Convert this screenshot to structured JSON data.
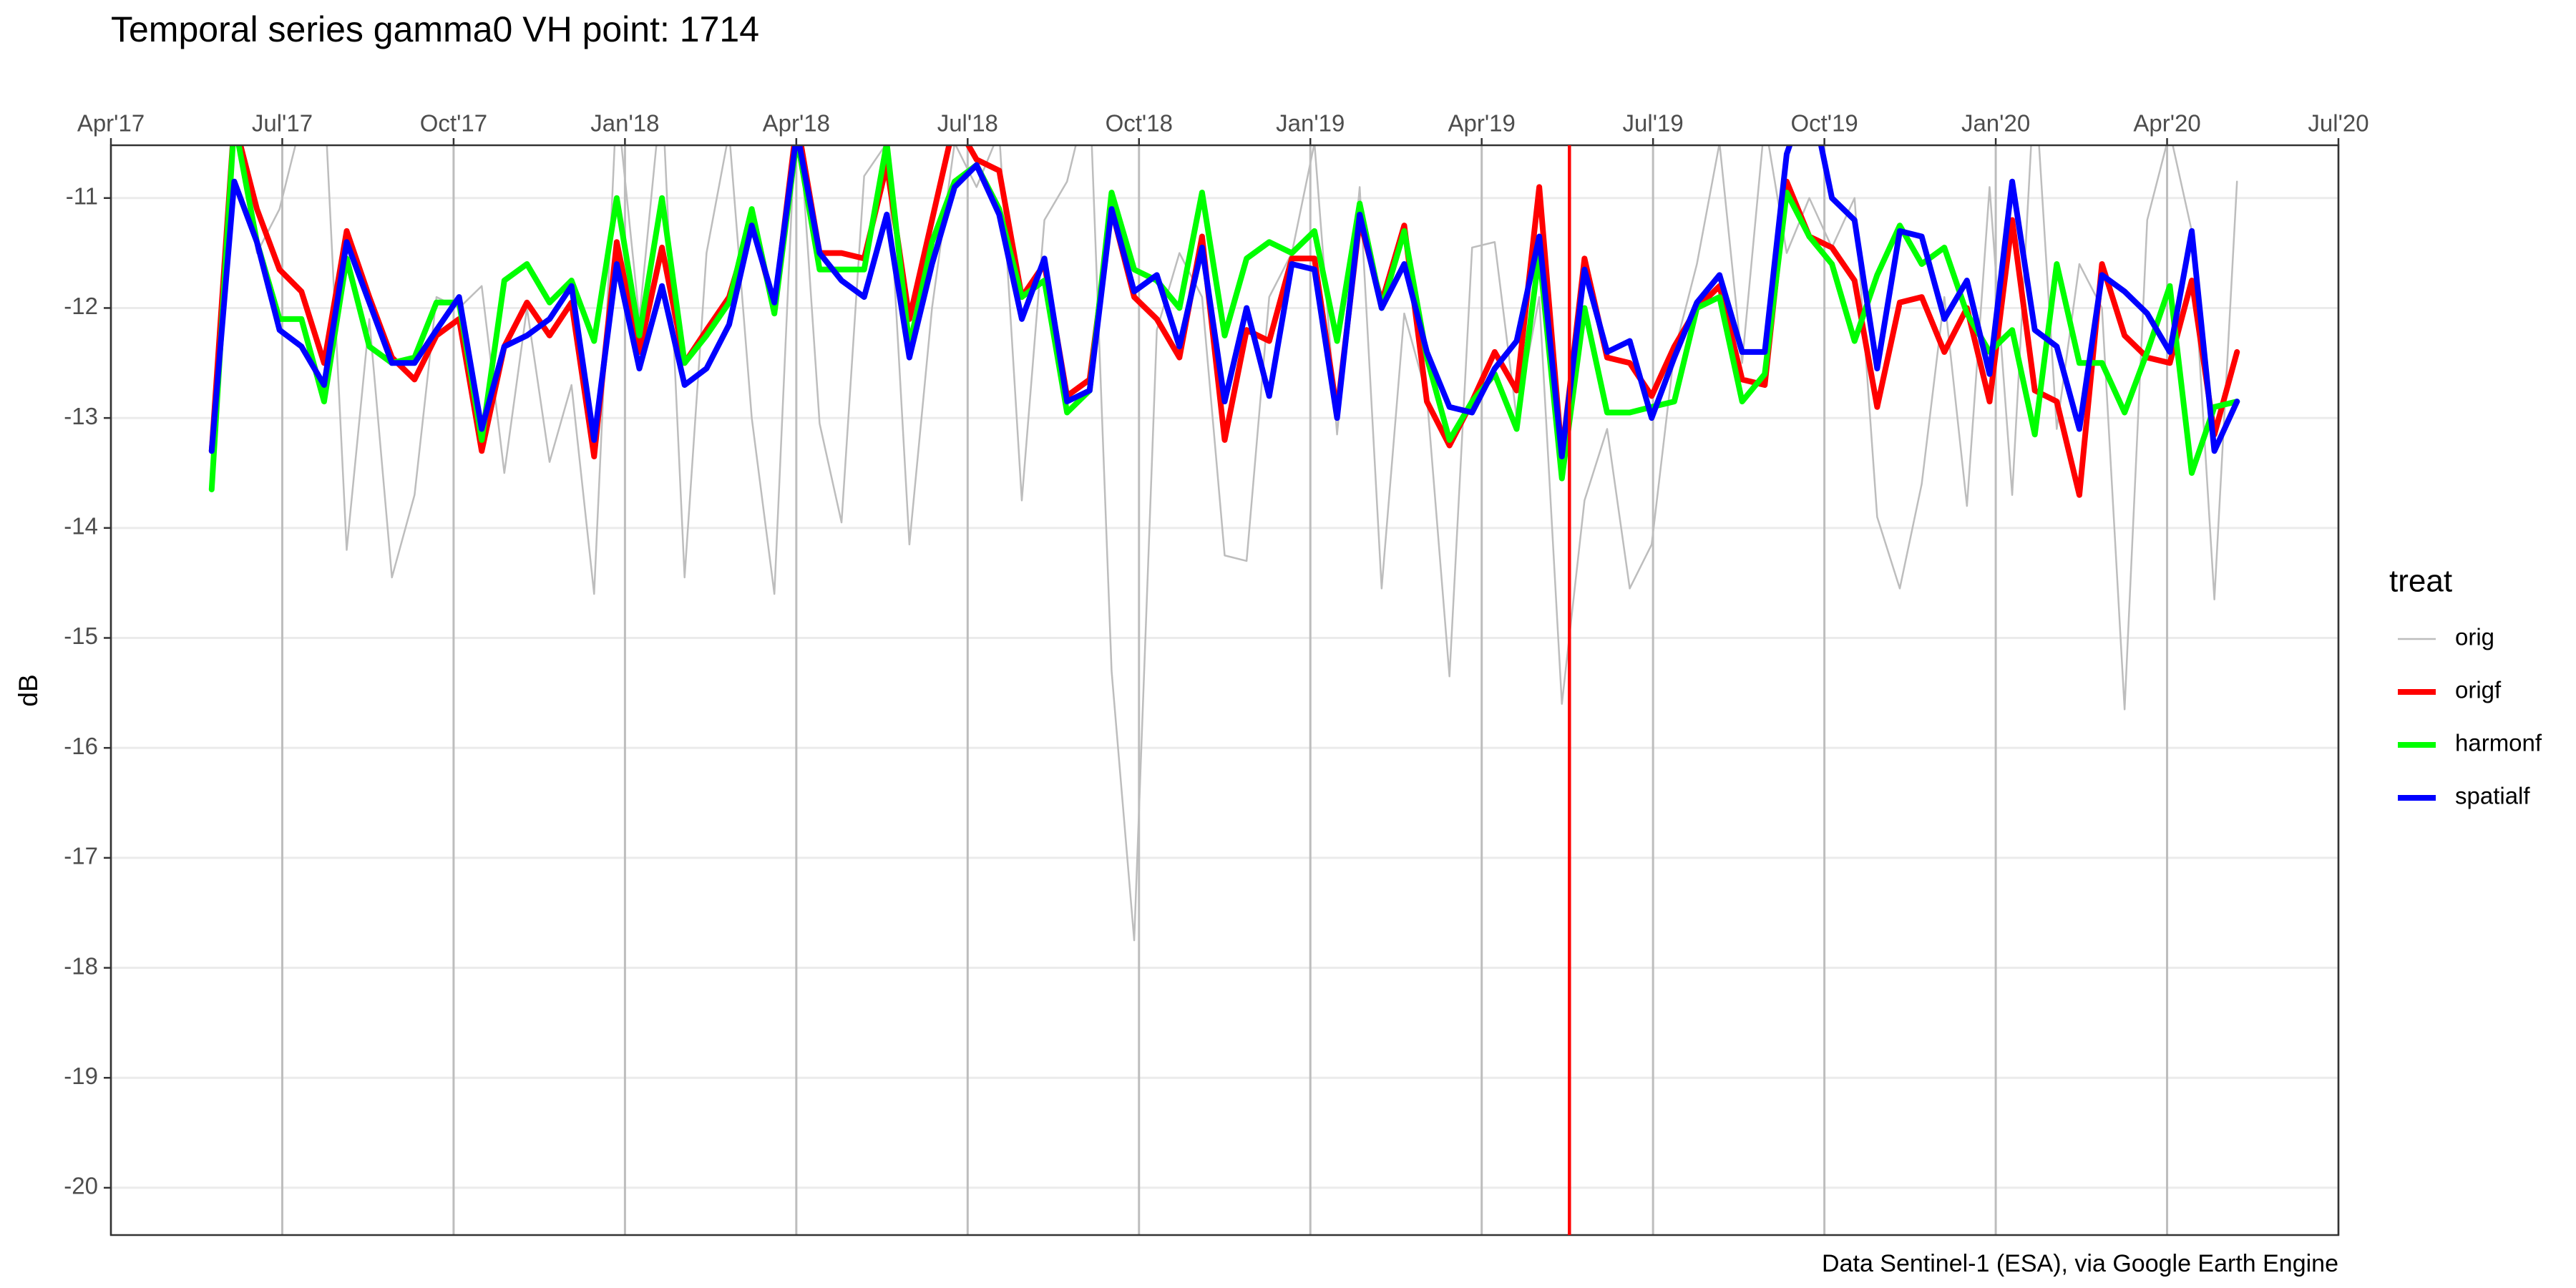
{
  "chart_data": {
    "type": "line",
    "title": "Temporal series gamma0 VH point: 1714",
    "ylabel": "dB",
    "caption": "Data Sentinel-1 (ESA), via Google Earth Engine",
    "legend_title": "treat",
    "legend": "right",
    "grid": true,
    "xlim": [
      2017.25,
      2020.5
    ],
    "xticks": [
      {
        "value": 2017.25,
        "label": "Apr'17"
      },
      {
        "value": 2017.5,
        "label": "Jul'17"
      },
      {
        "value": 2017.75,
        "label": "Oct'17"
      },
      {
        "value": 2018.0,
        "label": "Jan'18"
      },
      {
        "value": 2018.25,
        "label": "Apr'18"
      },
      {
        "value": 2018.5,
        "label": "Jul'18"
      },
      {
        "value": 2018.75,
        "label": "Oct'18"
      },
      {
        "value": 2019.0,
        "label": "Jan'19"
      },
      {
        "value": 2019.25,
        "label": "Apr'19"
      },
      {
        "value": 2019.5,
        "label": "Jul'19"
      },
      {
        "value": 2019.75,
        "label": "Oct'19"
      },
      {
        "value": 2020.0,
        "label": "Jan'20"
      },
      {
        "value": 2020.25,
        "label": "Apr'20"
      },
      {
        "value": 2020.5,
        "label": "Jul'20"
      }
    ],
    "ylim": [
      -20.43,
      -10.52
    ],
    "yticks": [
      -11,
      -12,
      -13,
      -14,
      -15,
      -16,
      -17,
      -18,
      -19,
      -20
    ],
    "vline": 2019.378,
    "vline_color": "#ff0000",
    "x": [
      2017.397,
      2017.43,
      2017.463,
      2017.496,
      2017.528,
      2017.561,
      2017.594,
      2017.627,
      2017.66,
      2017.693,
      2017.725,
      2017.758,
      2017.791,
      2017.824,
      2017.857,
      2017.89,
      2017.922,
      2017.955,
      2017.988,
      2018.021,
      2018.054,
      2018.087,
      2018.119,
      2018.152,
      2018.185,
      2018.218,
      2018.251,
      2018.284,
      2018.316,
      2018.349,
      2018.382,
      2018.415,
      2018.448,
      2018.481,
      2018.513,
      2018.546,
      2018.579,
      2018.612,
      2018.645,
      2018.678,
      2018.71,
      2018.743,
      2018.776,
      2018.809,
      2018.842,
      2018.875,
      2018.907,
      2018.94,
      2018.973,
      2019.006,
      2019.039,
      2019.072,
      2019.104,
      2019.137,
      2019.17,
      2019.203,
      2019.236,
      2019.269,
      2019.301,
      2019.334,
      2019.367,
      2019.4,
      2019.433,
      2019.466,
      2019.498,
      2019.531,
      2019.564,
      2019.597,
      2019.63,
      2019.663,
      2019.695,
      2019.728,
      2019.761,
      2019.794,
      2019.827,
      2019.86,
      2019.892,
      2019.925,
      2019.958,
      2019.991,
      2020.024,
      2020.057,
      2020.089,
      2020.122,
      2020.155,
      2020.188,
      2020.221,
      2020.254,
      2020.286,
      2020.319,
      2020.352
    ],
    "series": [
      {
        "name": "orig",
        "color": "#bdbdbd",
        "linewidth": 2.5,
        "values": [
          -13.4,
          -10.2,
          -11.5,
          -11.1,
          -10.3,
          -10.0,
          -14.2,
          -12.1,
          -14.45,
          -13.7,
          -11.9,
          -12.0,
          -11.8,
          -13.5,
          -12.0,
          -13.4,
          -12.7,
          -14.6,
          -10.1,
          -12.1,
          -10.0,
          -14.45,
          -11.5,
          -10.4,
          -13.0,
          -14.6,
          -10.0,
          -13.05,
          -13.95,
          -10.8,
          -10.5,
          -14.15,
          -12.0,
          -10.5,
          -10.9,
          -10.4,
          -13.75,
          -11.2,
          -10.85,
          -10.0,
          -15.3,
          -17.75,
          -12.2,
          -11.5,
          -11.9,
          -14.25,
          -14.3,
          -11.9,
          -11.5,
          -10.5,
          -13.15,
          -10.9,
          -14.55,
          -12.05,
          -12.8,
          -15.35,
          -11.45,
          -11.4,
          -13.0,
          -11.9,
          -15.6,
          -13.75,
          -13.1,
          -14.55,
          -14.15,
          -12.4,
          -11.6,
          -10.5,
          -12.5,
          -10.3,
          -11.5,
          -11.0,
          -11.45,
          -11.0,
          -13.9,
          -14.55,
          -13.6,
          -11.9,
          -13.8,
          -10.9,
          -13.7,
          -9.9,
          -13.1,
          -11.6,
          -12.0,
          -15.65,
          -11.2,
          -10.4,
          -11.3,
          -14.65,
          -10.85
        ]
      },
      {
        "name": "origf",
        "color": "#ff0000",
        "linewidth": 8,
        "values": [
          -13.3,
          -10.3,
          -11.1,
          -11.65,
          -11.85,
          -12.5,
          -11.3,
          -11.9,
          -12.45,
          -12.65,
          -12.25,
          -12.1,
          -13.3,
          -12.35,
          -11.95,
          -12.25,
          -11.95,
          -13.35,
          -11.4,
          -12.4,
          -11.45,
          -12.5,
          -12.2,
          -11.9,
          -11.2,
          -12.0,
          -10.3,
          -11.5,
          -11.5,
          -11.55,
          -10.7,
          -12.1,
          -11.2,
          -10.3,
          -10.65,
          -10.75,
          -11.9,
          -11.6,
          -12.8,
          -12.65,
          -11.1,
          -11.9,
          -12.1,
          -12.45,
          -11.35,
          -13.2,
          -12.2,
          -12.3,
          -11.55,
          -11.55,
          -12.95,
          -11.2,
          -11.95,
          -11.25,
          -12.85,
          -13.25,
          -12.85,
          -12.4,
          -12.75,
          -10.9,
          -13.35,
          -11.55,
          -12.45,
          -12.5,
          -12.8,
          -12.35,
          -12.0,
          -11.8,
          -12.65,
          -12.7,
          -10.85,
          -11.35,
          -11.45,
          -11.75,
          -12.9,
          -11.95,
          -11.9,
          -12.4,
          -12.0,
          -12.85,
          -11.2,
          -12.75,
          -12.85,
          -13.7,
          -11.6,
          -12.25,
          -12.45,
          -12.5,
          -11.75,
          -13.15,
          -12.4
        ]
      },
      {
        "name": "harmonf",
        "color": "#00ff00",
        "linewidth": 8,
        "values": [
          -13.65,
          -10.3,
          -11.4,
          -12.1,
          -12.1,
          -12.85,
          -11.55,
          -12.35,
          -12.5,
          -12.45,
          -11.95,
          -11.95,
          -13.2,
          -11.75,
          -11.6,
          -11.95,
          -11.75,
          -12.3,
          -11.0,
          -12.25,
          -11.0,
          -12.5,
          -12.25,
          -11.95,
          -11.1,
          -12.05,
          -10.45,
          -11.65,
          -11.65,
          -11.65,
          -10.5,
          -12.35,
          -11.4,
          -10.85,
          -10.7,
          -11.1,
          -11.9,
          -11.75,
          -12.95,
          -12.75,
          -10.95,
          -11.65,
          -11.75,
          -12.0,
          -10.95,
          -12.25,
          -11.55,
          -11.4,
          -11.5,
          -11.3,
          -12.3,
          -11.05,
          -12.0,
          -11.3,
          -12.45,
          -13.2,
          -12.85,
          -12.6,
          -13.1,
          -11.5,
          -13.55,
          -12.0,
          -12.95,
          -12.95,
          -12.9,
          -12.85,
          -12.0,
          -11.9,
          -12.85,
          -12.6,
          -10.95,
          -11.35,
          -11.6,
          -12.3,
          -11.7,
          -11.25,
          -11.6,
          -11.45,
          -12.05,
          -12.4,
          -12.2,
          -13.15,
          -11.6,
          -12.5,
          -12.5,
          -12.95,
          -12.4,
          -11.8,
          -13.5,
          -12.9,
          -12.85
        ]
      },
      {
        "name": "spatialf",
        "color": "#0000ff",
        "linewidth": 8,
        "values": [
          -13.3,
          -10.85,
          -11.4,
          -12.2,
          -12.35,
          -12.7,
          -11.4,
          -11.95,
          -12.5,
          -12.5,
          -12.2,
          -11.9,
          -13.1,
          -12.35,
          -12.25,
          -12.1,
          -11.8,
          -13.2,
          -11.6,
          -12.55,
          -11.8,
          -12.7,
          -12.55,
          -12.15,
          -11.25,
          -11.95,
          -10.4,
          -11.5,
          -11.75,
          -11.9,
          -11.15,
          -12.45,
          -11.6,
          -10.9,
          -10.7,
          -11.15,
          -12.1,
          -11.55,
          -12.85,
          -12.75,
          -11.1,
          -11.85,
          -11.7,
          -12.35,
          -11.45,
          -12.85,
          -12.0,
          -12.8,
          -11.6,
          -11.65,
          -13.0,
          -11.15,
          -12.0,
          -11.6,
          -12.4,
          -12.9,
          -12.95,
          -12.55,
          -12.3,
          -11.35,
          -13.35,
          -11.65,
          -12.4,
          -12.3,
          -13.0,
          -12.45,
          -11.95,
          -11.7,
          -12.4,
          -12.4,
          -10.6,
          -10.0,
          -11.0,
          -11.2,
          -12.55,
          -11.3,
          -11.35,
          -12.1,
          -11.75,
          -12.6,
          -10.85,
          -12.2,
          -12.35,
          -13.1,
          -11.7,
          -11.85,
          -12.05,
          -12.4,
          -11.3,
          -13.3,
          -12.85
        ]
      }
    ]
  }
}
